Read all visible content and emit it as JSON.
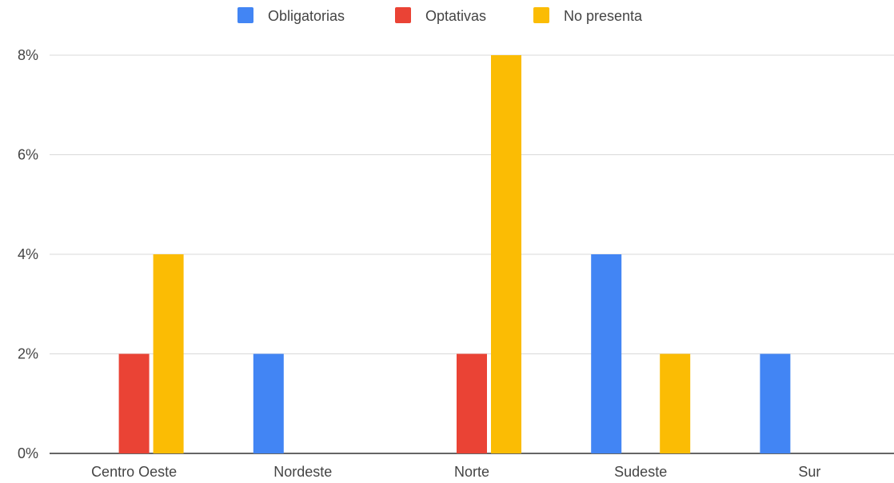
{
  "chart_data": {
    "type": "bar",
    "categories": [
      "Centro Oeste",
      "Nordeste",
      "Norte",
      "Sudeste",
      "Sur"
    ],
    "series": [
      {
        "name": "Obligatorias",
        "color": "#4285f4",
        "values": [
          0,
          2,
          0,
          4,
          2
        ]
      },
      {
        "name": "Optativas",
        "color": "#ea4335",
        "values": [
          2,
          0,
          2,
          0,
          0
        ]
      },
      {
        "name": "No presenta",
        "color": "#fbbc04",
        "values": [
          4,
          0,
          8,
          2,
          0
        ]
      }
    ],
    "yticks": [
      0,
      2,
      4,
      6,
      8
    ],
    "ytick_labels": [
      "0%",
      "2%",
      "4%",
      "6%",
      "8%"
    ],
    "ylim": [
      0,
      8
    ],
    "unit": "%",
    "grid": true,
    "legend": "top-center",
    "title": "",
    "xlabel": "",
    "ylabel": ""
  }
}
